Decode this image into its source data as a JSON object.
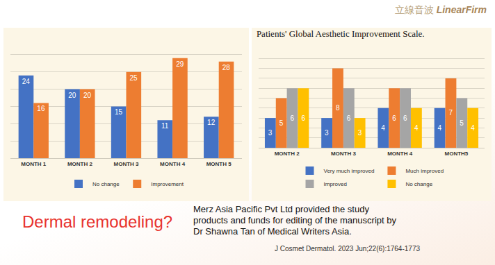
{
  "logo_cn": "立線音波",
  "logo_en": "LinearFirm",
  "caption": "Dermal remodeling?",
  "funding": "Merz Asia Pacific Pvt Ltd provided the study products and funds for editing of the manuscript by Dr Shawna Tan of Medical Writers Asia.",
  "citation": "J Cosmet Dermatol. 2023 Jun;22(6):1764-1773",
  "chart_data": [
    {
      "type": "bar",
      "categories": [
        "MONTH 1",
        "MONTH 2",
        "MONTH 3",
        "MONTH 4",
        "MONTH 5"
      ],
      "series": [
        {
          "name": "No change",
          "color": "#4472c4",
          "values": [
            24,
            20,
            15,
            11,
            12
          ]
        },
        {
          "name": "Improvement",
          "color": "#ed7d31",
          "values": [
            16,
            20,
            25,
            29,
            28
          ]
        }
      ],
      "ylim": [
        0,
        35
      ],
      "yticks": [
        0,
        5,
        10,
        15,
        20,
        25,
        30,
        35
      ],
      "grid": true,
      "legend": "bottom",
      "data_labels": true,
      "tick_labels": "x"
    },
    {
      "type": "bar",
      "title": "Patients' Global Aesthetic Improvement Scale.",
      "categories": [
        "MONTH 2",
        "MONTH 3",
        "MONTH 4",
        "MONTH5"
      ],
      "series": [
        {
          "name": "Very much improved",
          "color": "#4472c4",
          "values": [
            3,
            3,
            4,
            4
          ]
        },
        {
          "name": "Much improved",
          "color": "#ed7d31",
          "values": [
            5,
            8,
            6,
            7
          ]
        },
        {
          "name": "Improved",
          "color": "#a5a5a5",
          "values": [
            6,
            6,
            6,
            5
          ]
        },
        {
          "name": "No change",
          "color": "#ffc000",
          "values": [
            6,
            3,
            4,
            4
          ]
        }
      ],
      "ylim": [
        0,
        10
      ],
      "yticks": [
        0,
        1,
        2,
        3,
        4,
        5,
        6,
        7,
        8,
        9,
        10
      ],
      "grid": true,
      "legend": "bottom",
      "data_labels": true,
      "tick_labels": "x"
    }
  ]
}
